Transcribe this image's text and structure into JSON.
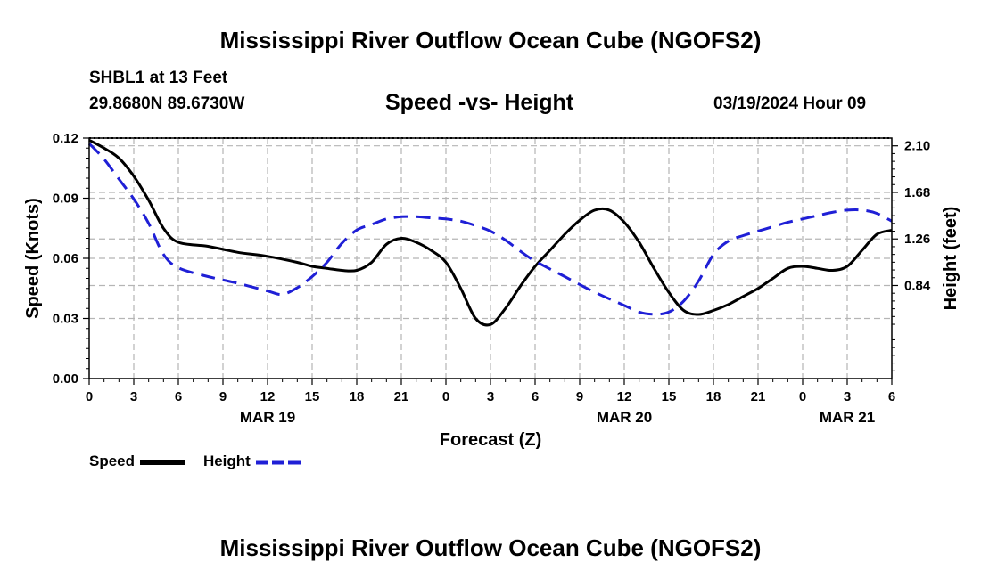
{
  "page": {
    "title_top": "Mississippi River Outflow Ocean Cube (NGOFS2)",
    "title_bottom": "Mississippi River Outflow Ocean Cube (NGOFS2)",
    "station": "SHBL1 at 13 Feet",
    "coords": "29.8680N  89.6730W",
    "timestamp": "03/19/2024 Hour 09"
  },
  "chart_data": {
    "type": "line",
    "title": "Speed -vs- Height",
    "xlabel": "Forecast (Z)",
    "ylabel_left": "Speed (Knots)",
    "ylabel_right": "Height (feet)",
    "x_unit": "hours since 03/19 00Z",
    "xlim": [
      0,
      54
    ],
    "ylim_left": [
      0,
      0.12
    ],
    "ylim_right": [
      0.0,
      2.17
    ],
    "left_ticks": [
      0.0,
      0.03,
      0.06,
      0.09,
      0.12
    ],
    "left_tick_labels": [
      "0.00",
      "0.03",
      "0.06",
      "0.09",
      "0.12"
    ],
    "right_ticks": [
      0.84,
      1.26,
      1.68,
      2.1
    ],
    "right_tick_labels": [
      "0.84",
      "1.26",
      "1.68",
      "2.10"
    ],
    "x_ticks": [
      0,
      3,
      6,
      9,
      12,
      15,
      18,
      21,
      24,
      27,
      30,
      33,
      36,
      39,
      42,
      45,
      48,
      51,
      54
    ],
    "x_tick_labels": [
      "0",
      "3",
      "6",
      "9",
      "12",
      "15",
      "18",
      "21",
      "0",
      "3",
      "6",
      "9",
      "12",
      "15",
      "18",
      "21",
      "0",
      "3",
      "6"
    ],
    "date_labels": [
      {
        "x": 12,
        "text": "MAR 19"
      },
      {
        "x": 36,
        "text": "MAR 20"
      },
      {
        "x": 51,
        "text": "MAR 21"
      }
    ],
    "grid": true,
    "series": [
      {
        "name": "Speed",
        "axis": "left",
        "color": "#000000",
        "dash": "solid",
        "x": [
          0,
          1,
          2,
          3,
          4,
          5,
          6,
          8,
          10,
          12,
          14,
          15,
          16,
          17,
          18,
          19,
          20,
          21,
          22,
          23,
          24,
          25,
          26,
          27,
          28,
          29,
          30,
          31,
          32,
          33,
          34,
          35,
          36,
          37,
          38,
          39,
          40,
          41,
          42,
          43,
          44,
          45,
          46,
          47,
          48,
          49,
          50,
          51,
          52,
          53,
          54
        ],
        "values": [
          0.119,
          0.115,
          0.11,
          0.101,
          0.089,
          0.075,
          0.068,
          0.066,
          0.063,
          0.061,
          0.058,
          0.056,
          0.055,
          0.054,
          0.054,
          0.058,
          0.067,
          0.07,
          0.068,
          0.064,
          0.058,
          0.045,
          0.03,
          0.027,
          0.035,
          0.046,
          0.056,
          0.064,
          0.072,
          0.079,
          0.084,
          0.084,
          0.078,
          0.068,
          0.055,
          0.043,
          0.034,
          0.032,
          0.034,
          0.037,
          0.041,
          0.045,
          0.05,
          0.055,
          0.056,
          0.055,
          0.054,
          0.056,
          0.064,
          0.072,
          0.074
        ]
      },
      {
        "name": "Height",
        "axis": "right",
        "color": "#1f1fd6",
        "dash": "dashed",
        "x": [
          0,
          1,
          2,
          3,
          4,
          5,
          6,
          8,
          10,
          12,
          13,
          14,
          15,
          16,
          17,
          18,
          19,
          20,
          21,
          22,
          23,
          24,
          25,
          26,
          27,
          28,
          29,
          30,
          32,
          34,
          36,
          37,
          38,
          39,
          40,
          41,
          42,
          43,
          44,
          45,
          46,
          47,
          48,
          49,
          50,
          51,
          52,
          53,
          54
        ],
        "values": [
          2.12,
          1.98,
          1.8,
          1.62,
          1.4,
          1.12,
          1.0,
          0.92,
          0.86,
          0.79,
          0.76,
          0.82,
          0.92,
          1.05,
          1.22,
          1.34,
          1.39,
          1.44,
          1.46,
          1.46,
          1.45,
          1.44,
          1.42,
          1.38,
          1.33,
          1.25,
          1.15,
          1.06,
          0.92,
          0.78,
          0.66,
          0.6,
          0.58,
          0.6,
          0.7,
          0.88,
          1.12,
          1.24,
          1.29,
          1.33,
          1.37,
          1.41,
          1.44,
          1.47,
          1.5,
          1.52,
          1.52,
          1.49,
          1.42
        ]
      }
    ],
    "legend": [
      {
        "label": "Speed",
        "color": "#000000",
        "dash": "solid"
      },
      {
        "label": "Height",
        "color": "#1f1fd6",
        "dash": "dashed"
      }
    ]
  }
}
